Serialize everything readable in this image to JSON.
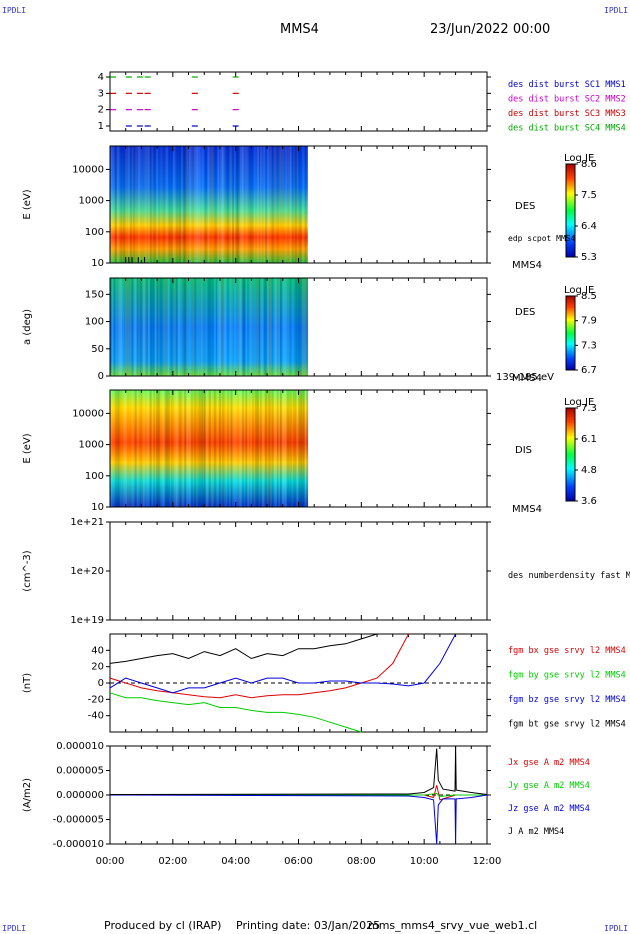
{
  "corners": {
    "top_left": "IPDLI",
    "top_right": "IPDLI",
    "bottom_left": "IPDLI",
    "bottom_right": "IPDLI"
  },
  "header": {
    "spacecraft": "MMS4",
    "datetime": "23/Jun/2022 00:00"
  },
  "footer": {
    "produced_by": "Produced by cl (IRAP)",
    "printing_date": "Printing date: 03/Jan/2025",
    "file": "mms_mms4_srvy_vue_web1.cl"
  },
  "colors": {
    "mms1": "#0000cc",
    "mms2": "#cc00cc",
    "mms3": "#cc0000",
    "mms4": "#00aa00",
    "bx": "#dd0000",
    "by": "#00cc00",
    "bz": "#0000dd",
    "bt": "#000000"
  },
  "chart_data": [
    {
      "type": "scatter",
      "id": "burst",
      "yticks": [
        "1",
        "2",
        "3",
        "4"
      ],
      "legend": [
        "des dist burst SC1 MMS1",
        "des dist burst SC2 MMS2",
        "des dist burst SC3 MMS3",
        "des dist burst SC4 MMS4"
      ],
      "series": [
        {
          "level": 1,
          "x": [
            0.6,
            0.95,
            1.2,
            2.7,
            4.0
          ]
        },
        {
          "level": 2,
          "x": [
            0.1,
            0.6,
            0.95,
            1.2,
            2.7,
            4.0
          ]
        },
        {
          "level": 3,
          "x": [
            0.1,
            0.6,
            0.95,
            1.2,
            2.7,
            4.0
          ]
        },
        {
          "level": 4,
          "x": [
            0.1,
            0.6,
            0.95,
            1.2,
            2.7,
            4.0
          ]
        }
      ]
    },
    {
      "type": "heatmap",
      "id": "des-energy",
      "ylabel": "E (eV)",
      "yticks": [
        "10",
        "100",
        "1000",
        "10000"
      ],
      "label": "DES",
      "label2": "MMS4",
      "overlay_label": "edp scpot MMS4",
      "colorbar": {
        "title": "Log JE",
        "ticks": [
          "8.6",
          "7.5",
          "6.4",
          "5.3"
        ]
      },
      "xlim_h": [
        0,
        6.3
      ]
    },
    {
      "type": "heatmap",
      "id": "des-pitch",
      "ylabel": "a (deg)",
      "yticks": [
        "0",
        "50",
        "100",
        "150"
      ],
      "label": "DES",
      "label2": "MMS4",
      "range_label": "139-185 eV",
      "colorbar": {
        "title": "Log JE",
        "ticks": [
          "8.5",
          "7.9",
          "7.3",
          "6.7"
        ]
      },
      "xlim_h": [
        0,
        6.3
      ]
    },
    {
      "type": "heatmap",
      "id": "dis-energy",
      "ylabel": "E (eV)",
      "yticks": [
        "10",
        "100",
        "1000",
        "10000"
      ],
      "label": "DIS",
      "label2": "MMS4",
      "colorbar": {
        "title": "Log JE",
        "ticks": [
          "7.3",
          "6.1",
          "4.8",
          "3.6"
        ]
      },
      "xlim_h": [
        0,
        6.3
      ]
    },
    {
      "type": "line",
      "id": "density",
      "ylabel": "(cm^-3)",
      "yticks": [
        "1e+19",
        "1e+20",
        "1e+21"
      ],
      "legend": [
        "des numberdensity fast M"
      ],
      "series": []
    },
    {
      "type": "line",
      "id": "fgm",
      "ylabel": "(nT)",
      "yticks": [
        "-40",
        "-20",
        "0",
        "20",
        "40"
      ],
      "ylim": [
        -50,
        50
      ],
      "legend": [
        "fgm bx gse srvy l2 MMS4",
        "fgm by gse srvy l2 MMS4",
        "fgm bz gse srvy l2 MMS4",
        "fgm bt gse srvy l2 MMS4"
      ],
      "series": [
        {
          "name": "fgm bx gse srvy l2 MMS4",
          "x": [
            0,
            0.5,
            1,
            1.5,
            2,
            2.5,
            3,
            3.5,
            4,
            4.5,
            5,
            5.5,
            6,
            6.5,
            7,
            7.5,
            8,
            8.5,
            9,
            9.5
          ],
          "y": [
            5,
            0,
            -5,
            -8,
            -10,
            -12,
            -14,
            -15,
            -12,
            -15,
            -13,
            -12,
            -12,
            -10,
            -8,
            -5,
            0,
            5,
            20,
            50
          ]
        },
        {
          "name": "fgm by gse srvy l2 MMS4",
          "x": [
            0,
            0.5,
            1,
            1.5,
            2,
            2.5,
            3,
            3.5,
            4,
            4.5,
            5,
            5.5,
            6,
            6.5,
            7,
            7.5,
            8
          ],
          "y": [
            -10,
            -15,
            -15,
            -18,
            -20,
            -22,
            -20,
            -25,
            -25,
            -28,
            -30,
            -30,
            -32,
            -35,
            -40,
            -45,
            -50
          ]
        },
        {
          "name": "fgm bz gse srvy l2 MMS4",
          "x": [
            0,
            0.5,
            1,
            1.5,
            2,
            2.5,
            3,
            3.5,
            4,
            4.5,
            5,
            5.5,
            6,
            6.5,
            7,
            7.5,
            8,
            8.5,
            9,
            9.5,
            10,
            10.5,
            11
          ],
          "y": [
            -5,
            5,
            0,
            -5,
            -10,
            -5,
            -5,
            0,
            5,
            0,
            5,
            5,
            0,
            0,
            2,
            2,
            0,
            0,
            -1,
            -3,
            0,
            20,
            50
          ]
        },
        {
          "name": "fgm bt gse srvy l2 MMS4",
          "x": [
            0,
            0.5,
            1,
            1.5,
            2,
            2.5,
            3,
            3.5,
            4,
            4.5,
            5,
            5.5,
            6,
            6.5,
            7,
            7.5,
            8,
            8.5
          ],
          "y": [
            20,
            22,
            25,
            28,
            30,
            25,
            32,
            28,
            35,
            25,
            30,
            28,
            35,
            35,
            38,
            40,
            45,
            50
          ]
        }
      ]
    },
    {
      "type": "line",
      "id": "current",
      "ylabel": "(A/m2)",
      "yticks": [
        "-0.000010",
        "-0.000005",
        "0.000000",
        "0.000005",
        "0.000010"
      ],
      "ylim": [
        -1e-05,
        1e-05
      ],
      "legend": [
        "Jx gse A m2 MMS4",
        "Jy gse A m2 MMS4",
        "Jz gse A m2 MMS4",
        "J A m2 MMS4"
      ],
      "series": [
        {
          "name": "Jx gse A m2 MMS4",
          "x": [
            0,
            9,
            10,
            10.3,
            10.4,
            10.5,
            11,
            12
          ],
          "y": [
            0,
            0,
            0,
            -5e-07,
            2e-06,
            -1e-06,
            0,
            0
          ]
        },
        {
          "name": "Jy gse A m2 MMS4",
          "x": [
            0,
            9,
            10,
            10.4,
            10.5,
            11,
            12
          ],
          "y": [
            0,
            0,
            0,
            3e-07,
            -3e-07,
            0,
            0
          ]
        },
        {
          "name": "Jz gse A m2 MMS4",
          "x": [
            0,
            9.5,
            10,
            10.3,
            10.4,
            10.45,
            10.6,
            10.98,
            11,
            11.02,
            11.5,
            12
          ],
          "y": [
            0,
            -2e-07,
            -5e-07,
            -1e-06,
            -1e-05,
            -2e-06,
            -8e-07,
            -8e-07,
            -1e-05,
            -8e-07,
            -5e-07,
            0
          ]
        },
        {
          "name": "J A m2 MMS4",
          "x": [
            0,
            9.5,
            10,
            10.3,
            10.4,
            10.45,
            10.6,
            10.98,
            11,
            11.02,
            11.5,
            12
          ],
          "y": [
            1e-07,
            2e-07,
            5e-07,
            1.5e-06,
            9.5e-06,
            3e-06,
            1.2e-06,
            8e-07,
            1e-05,
            1e-06,
            5e-07,
            1e-07
          ]
        }
      ]
    }
  ],
  "xaxis": {
    "ticks": [
      "00:00",
      "02:00",
      "04:00",
      "06:00",
      "08:00",
      "10:00",
      "12:00"
    ],
    "range_h": [
      0,
      12
    ]
  }
}
